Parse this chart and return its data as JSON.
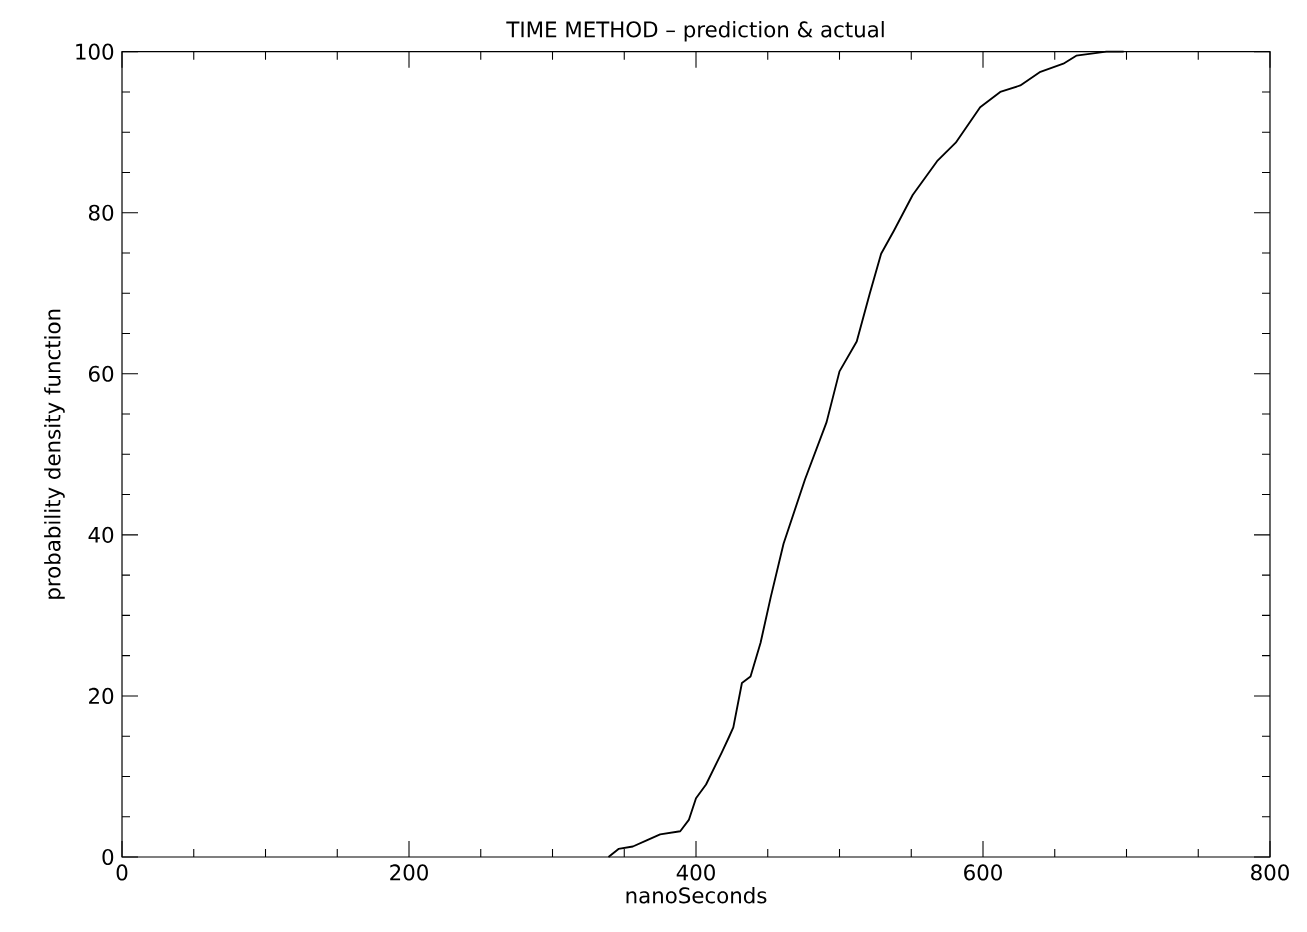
{
  "chart_data": {
    "type": "line",
    "title": "TIME METHOD – prediction & actual",
    "xlabel": "nanoSeconds",
    "ylabel": "probability density function",
    "xlim": [
      0,
      800
    ],
    "ylim": [
      0,
      100
    ],
    "xticks": [
      0,
      200,
      400,
      600,
      800
    ],
    "yticks": [
      0,
      20,
      40,
      60,
      80,
      100
    ],
    "series": [
      {
        "color": "#000000",
        "x": [
          339,
          346,
          356,
          366,
          375,
          389,
          395,
          400,
          407,
          418,
          423,
          426,
          432,
          438,
          445,
          452,
          461,
          476,
          491,
          500,
          512,
          521,
          529,
          538,
          551,
          568,
          581,
          598,
          612,
          626,
          640,
          656,
          665,
          686,
          698
        ],
        "values": [
          0,
          1.0,
          1.3,
          2.1,
          2.8,
          3.2,
          4.6,
          7.3,
          9.0,
          13.0,
          14.9,
          16.1,
          21.6,
          22.4,
          26.6,
          32.2,
          38.9,
          46.9,
          54.0,
          60.3,
          64.0,
          69.9,
          74.9,
          77.8,
          82.2,
          86.4,
          88.7,
          93.1,
          95.0,
          95.8,
          97.5,
          98.5,
          99.5,
          100,
          100
        ]
      }
    ]
  }
}
